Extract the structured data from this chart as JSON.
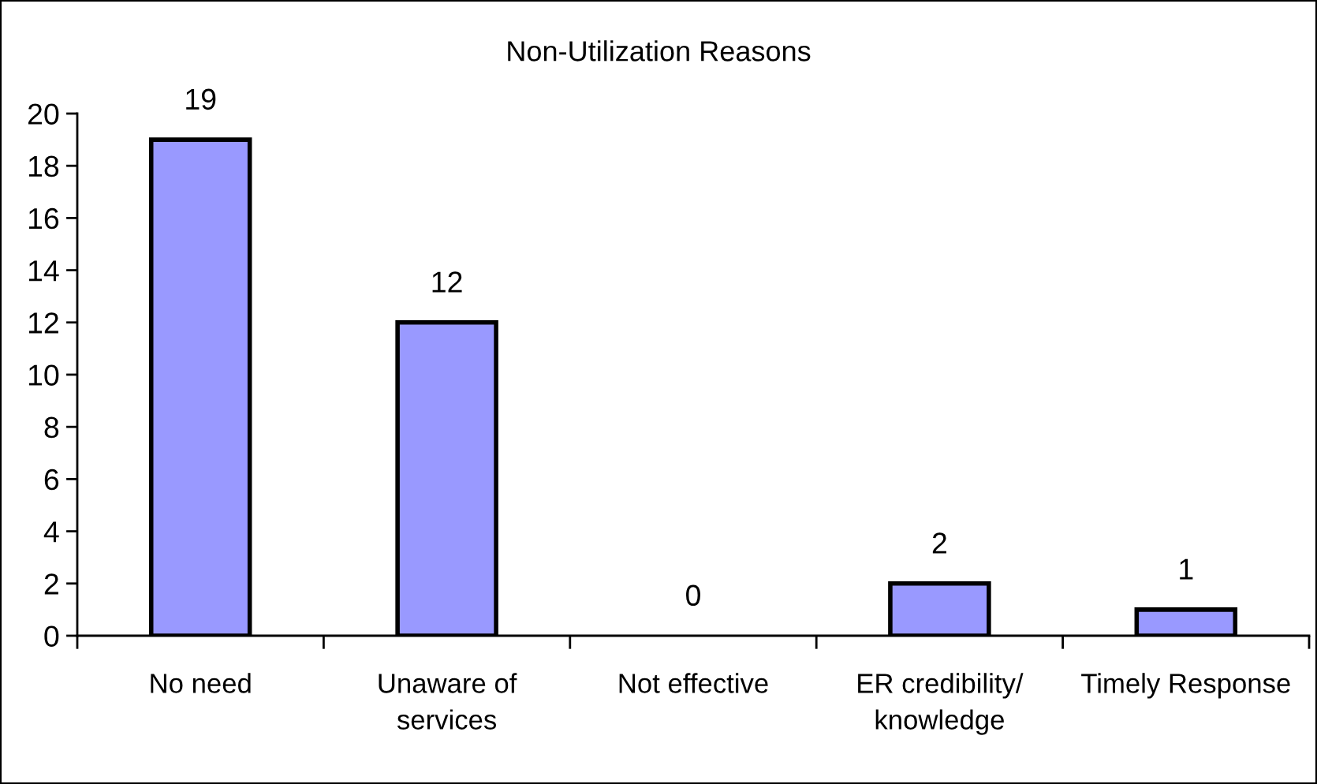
{
  "chart_data": {
    "type": "bar",
    "title": "Non-Utilization Reasons",
    "categories": [
      "No need",
      "Unaware of\nservices",
      "Not effective",
      "ER credibility/\nknowledge",
      "Timely Response"
    ],
    "values": [
      19,
      12,
      0,
      2,
      1
    ],
    "color": "#9999ff",
    "ylim": [
      0,
      20
    ],
    "yticks": [
      0,
      2,
      4,
      6,
      8,
      10,
      12,
      14,
      16,
      18,
      20
    ],
    "data_labels": true,
    "grid": false
  }
}
